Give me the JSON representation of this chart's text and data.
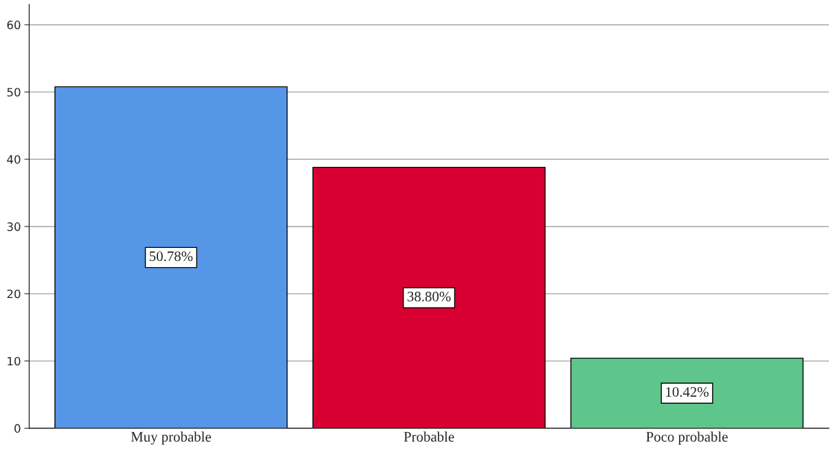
{
  "chart_data": {
    "type": "bar",
    "categories": [
      "Muy probable",
      "Probable",
      "Poco probable"
    ],
    "values": [
      50.78,
      38.8,
      10.42
    ],
    "colors": [
      "#5596e6",
      "#d70030",
      "#5ec68a"
    ],
    "value_labels": [
      "50.78%",
      "38.80%",
      "10.42%"
    ],
    "ylim": [
      0,
      63
    ],
    "yticks": [
      0,
      10,
      20,
      30,
      40,
      50,
      60
    ],
    "grid": "y"
  }
}
